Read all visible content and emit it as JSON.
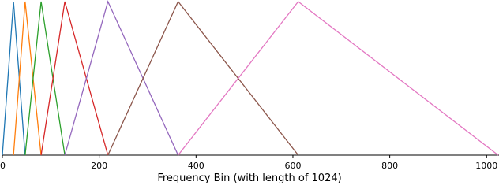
{
  "chart_data": {
    "type": "line",
    "xlabel": "Frequency Bin (with length of 1024)",
    "xlim": [
      0,
      1024
    ],
    "xticks": [
      0,
      200,
      400,
      600,
      800,
      1000
    ],
    "ylim": [
      0,
      1
    ],
    "series": [
      {
        "color": "#1f77b4",
        "x": [
          0,
          23,
          47
        ],
        "values": [
          0,
          1,
          0
        ]
      },
      {
        "color": "#ff7f0e",
        "x": [
          23,
          47,
          80
        ],
        "values": [
          0,
          1,
          0
        ]
      },
      {
        "color": "#2ca02c",
        "x": [
          47,
          80,
          129
        ],
        "values": [
          0,
          1,
          0
        ]
      },
      {
        "color": "#d62728",
        "x": [
          80,
          129,
          218
        ],
        "values": [
          0,
          1,
          0
        ]
      },
      {
        "color": "#9467bd",
        "x": [
          129,
          218,
          363
        ],
        "values": [
          0,
          1,
          0
        ]
      },
      {
        "color": "#8c564b",
        "x": [
          218,
          363,
          611
        ],
        "values": [
          0,
          1,
          0
        ]
      },
      {
        "color": "#e377c2",
        "x": [
          363,
          611,
          1024
        ],
        "values": [
          0,
          1,
          0
        ]
      }
    ]
  }
}
